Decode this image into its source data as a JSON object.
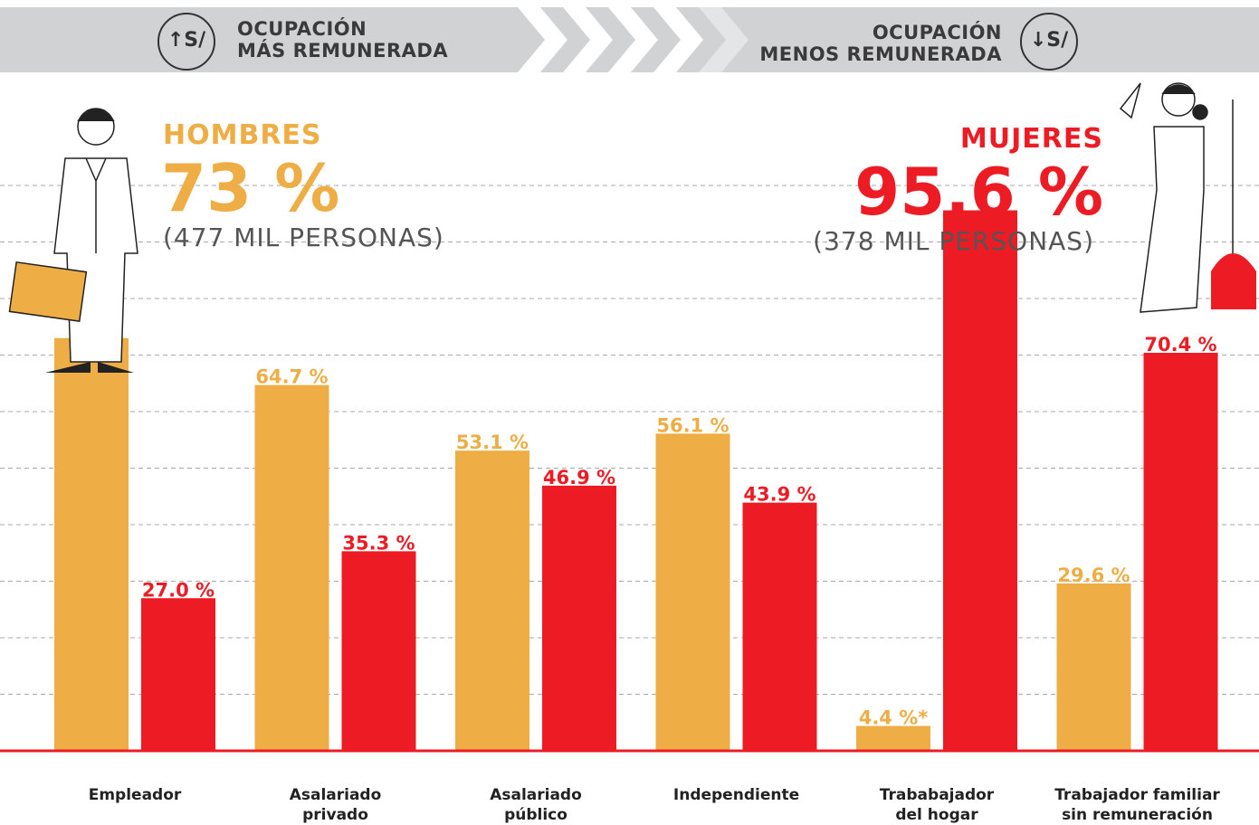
{
  "header": {
    "left": {
      "icon": "↑S/",
      "text": "OCUPACIÓN\nMÁS REMUNERADA"
    },
    "right": {
      "icon": "↓S/",
      "text": "OCUPACIÓN\nMENOS REMUNERADA"
    }
  },
  "chart_data": {
    "type": "bar",
    "categories": [
      "Empleador",
      "Asalariado\nprivado",
      "Asalariado\npúblico",
      "Independiente",
      "Trababajador\ndel hogar",
      "Trabajador familiar\nsin remuneración"
    ],
    "series": [
      {
        "name": "HOMBRES",
        "color": "#eeae45",
        "values": [
          73.0,
          64.7,
          53.1,
          56.1,
          4.4,
          29.6
        ],
        "value_labels": [
          null,
          "64.7 %",
          "53.1 %",
          "56.1 %",
          "4.4 %*",
          "29.6 %"
        ]
      },
      {
        "name": "MUJERES",
        "color": "#ed1c24",
        "values": [
          27.0,
          35.3,
          46.9,
          43.9,
          95.6,
          70.4
        ],
        "value_labels": [
          "27.0 %",
          "35.3 %",
          "46.9 %",
          "43.9 %",
          null,
          "70.4 %"
        ]
      }
    ],
    "annotations": [
      {
        "value": "73 %",
        "text": "(477 MIL PERSONAS)"
      },
      {
        "value": "95.6 %",
        "text": "(378 MIL PERSONAS)"
      }
    ],
    "ylim": [
      0,
      100
    ],
    "yticks": [
      10,
      20,
      30,
      40,
      50,
      60,
      70,
      80,
      90,
      100
    ],
    "grid": true
  }
}
